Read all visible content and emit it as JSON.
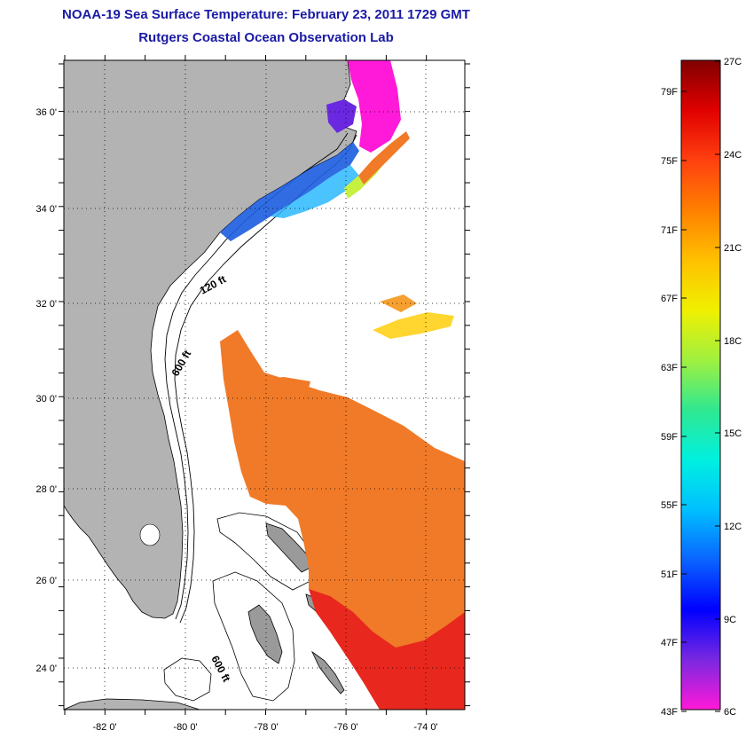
{
  "title": {
    "line1": "NOAA-19 Sea Surface Temperature:  February 23, 2011 1729 GMT",
    "line2": "Rutgers Coastal Ocean Observation Lab"
  },
  "map": {
    "lat_ticks": [
      "24 0'",
      "26 0'",
      "28 0'",
      "30 0'",
      "32 0'",
      "34 0'",
      "36 0'"
    ],
    "lon_ticks": [
      "-82 0'",
      "-80 0'",
      "-78 0'",
      "-76 0'",
      "-74 0'"
    ],
    "contour_labels": [
      "120 ft",
      "600 ft",
      "600 ft"
    ],
    "colors": {
      "land": "#b3b3b3",
      "ocean": "#ffffff",
      "gulf_stream": "#f07a28",
      "warm_core": "#e8281e",
      "cold_shelf": "#1f5fe0"
    }
  },
  "colorbar": {
    "fahrenheit_labels": [
      "79F",
      "75F",
      "71F",
      "67F",
      "63F",
      "59F",
      "55F",
      "51F",
      "47F",
      "43F"
    ],
    "celsius_labels": [
      "27C",
      "24C",
      "21C",
      "18C",
      "15C",
      "12C",
      "9C",
      "6C"
    ],
    "colors": [
      "#ff19d8",
      "#7a28e0",
      "#0000ff",
      "#0a64ff",
      "#00c0ff",
      "#00f0e0",
      "#30e890",
      "#a0f040",
      "#f0f000",
      "#ffc000",
      "#ff8000",
      "#ff4010",
      "#e00000",
      "#800000"
    ]
  }
}
